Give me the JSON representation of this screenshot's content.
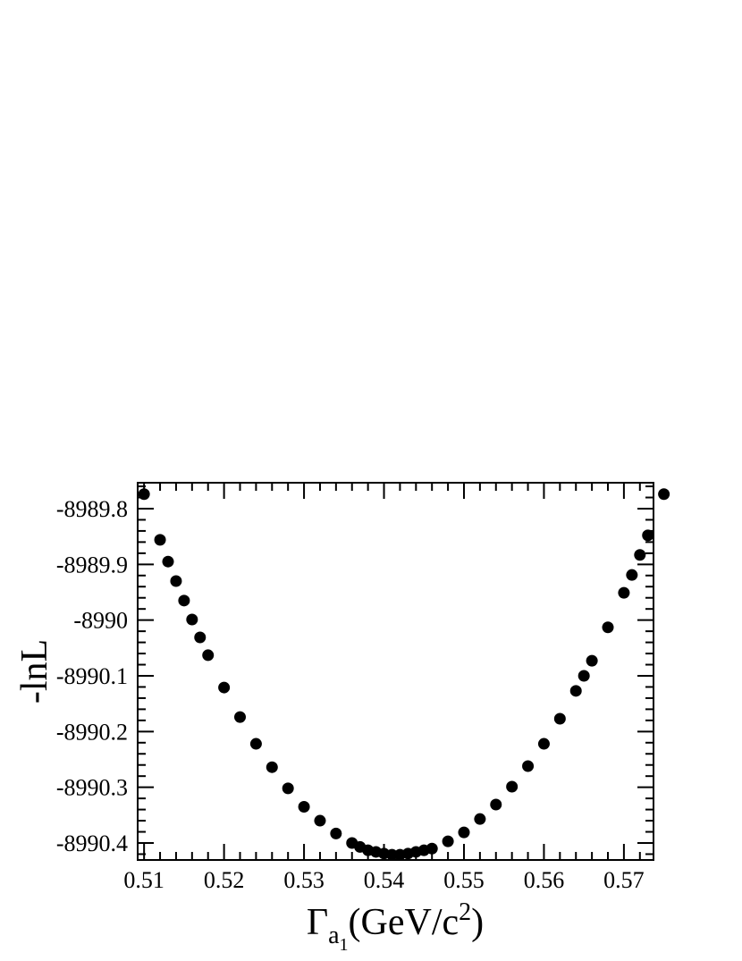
{
  "chart_data": {
    "type": "scatter",
    "y_label": "-lnL",
    "x_label": [
      "Γ",
      "a",
      "1",
      "(GeV/c",
      "2",
      ")"
    ],
    "color": "#000000",
    "xlim": [
      0.5092,
      0.5737
    ],
    "ylim": [
      -8990.4305,
      -8989.7535
    ],
    "xticks": [
      0.51,
      0.52,
      0.53,
      0.54,
      0.55,
      0.56,
      0.57
    ],
    "yticks": [
      -8989.8,
      -8989.9,
      -8990,
      -8990.1,
      -8990.2,
      -8990.3,
      -8990.4
    ],
    "x": [
      0.51,
      0.512,
      0.513,
      0.514,
      0.515,
      0.516,
      0.517,
      0.518,
      0.52,
      0.522,
      0.524,
      0.526,
      0.528,
      0.53,
      0.532,
      0.534,
      0.536,
      0.537,
      0.538,
      0.539,
      0.54,
      0.541,
      0.542,
      0.543,
      0.544,
      0.545,
      0.546,
      0.548,
      0.55,
      0.552,
      0.554,
      0.556,
      0.558,
      0.56,
      0.562,
      0.564,
      0.565,
      0.566,
      0.568,
      0.57,
      0.571,
      0.572,
      0.573,
      0.575
    ],
    "values": [
      -8989.774,
      -8989.856,
      -8989.895,
      -8989.93,
      -8989.965,
      -8989.999,
      -8990.031,
      -8990.063,
      -8990.121,
      -8990.174,
      -8990.222,
      -8990.264,
      -8990.302,
      -8990.335,
      -8990.36,
      -8990.383,
      -8990.4,
      -8990.407,
      -8990.413,
      -8990.416,
      -8990.419,
      -8990.421,
      -8990.421,
      -8990.419,
      -8990.416,
      -8990.413,
      -8990.41,
      -8990.397,
      -8990.381,
      -8990.357,
      -8990.331,
      -8990.299,
      -8990.262,
      -8990.222,
      -8990.177,
      -8990.127,
      -8990.1,
      -8990.073,
      -8990.013,
      -8989.951,
      -8989.919,
      -8989.883,
      -8989.848,
      -8989.774
    ]
  }
}
